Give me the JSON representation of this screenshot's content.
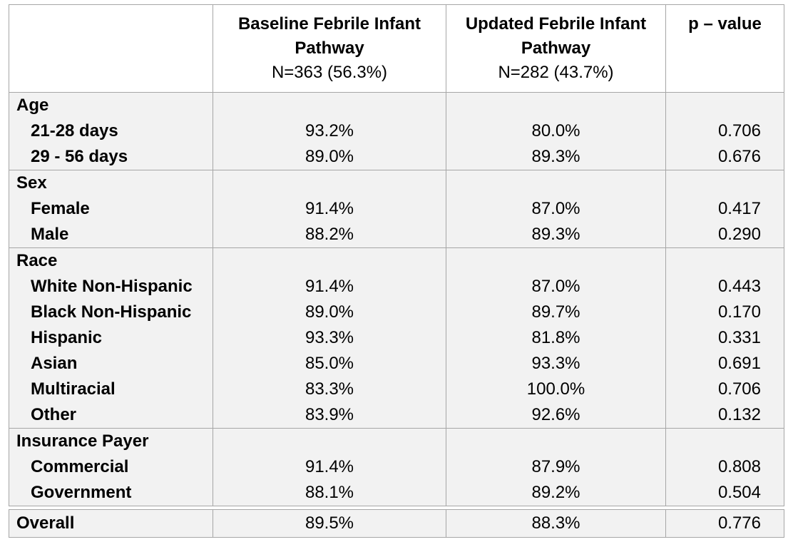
{
  "header": {
    "col0": "",
    "col1_title_line1": "Baseline Febrile Infant",
    "col1_title_line2": "Pathway",
    "col1_n": "N=363 (56.3%)",
    "col2_title_line1": "Updated Febrile Infant",
    "col2_title_line2": "Pathway",
    "col2_n": "N=282 (43.7%)",
    "col3_title": "p – value"
  },
  "groups": [
    {
      "name": "Age",
      "rows": [
        {
          "label": "21-28 days",
          "baseline": "93.2%",
          "updated": "80.0%",
          "p": "0.706"
        },
        {
          "label": "29 - 56 days",
          "baseline": "89.0%",
          "updated": "89.3%",
          "p": "0.676"
        }
      ]
    },
    {
      "name": "Sex",
      "rows": [
        {
          "label": "Female",
          "baseline": "91.4%",
          "updated": "87.0%",
          "p": "0.417"
        },
        {
          "label": "Male",
          "baseline": "88.2%",
          "updated": "89.3%",
          "p": "0.290"
        }
      ]
    },
    {
      "name": "Race",
      "rows": [
        {
          "label": "White Non-Hispanic",
          "baseline": "91.4%",
          "updated": "87.0%",
          "p": "0.443"
        },
        {
          "label": "Black Non-Hispanic",
          "baseline": "89.0%",
          "updated": "89.7%",
          "p": "0.170"
        },
        {
          "label": "Hispanic",
          "baseline": "93.3%",
          "updated": "81.8%",
          "p": "0.331"
        },
        {
          "label": "Asian",
          "baseline": "85.0%",
          "updated": "93.3%",
          "p": "0.691"
        },
        {
          "label": "Multiracial",
          "baseline": "83.3%",
          "updated": "100.0%",
          "p": "0.706"
        },
        {
          "label": "Other",
          "baseline": "83.9%",
          "updated": "92.6%",
          "p": "0.132"
        }
      ]
    },
    {
      "name": "Insurance Payer",
      "rows": [
        {
          "label": "Commercial",
          "baseline": "91.4%",
          "updated": "87.9%",
          "p": "0.808"
        },
        {
          "label": "Government",
          "baseline": "88.1%",
          "updated": "89.2%",
          "p": "0.504"
        }
      ]
    }
  ],
  "overall": {
    "label": "Overall",
    "baseline": "89.5%",
    "updated": "88.3%",
    "p": "0.776"
  }
}
